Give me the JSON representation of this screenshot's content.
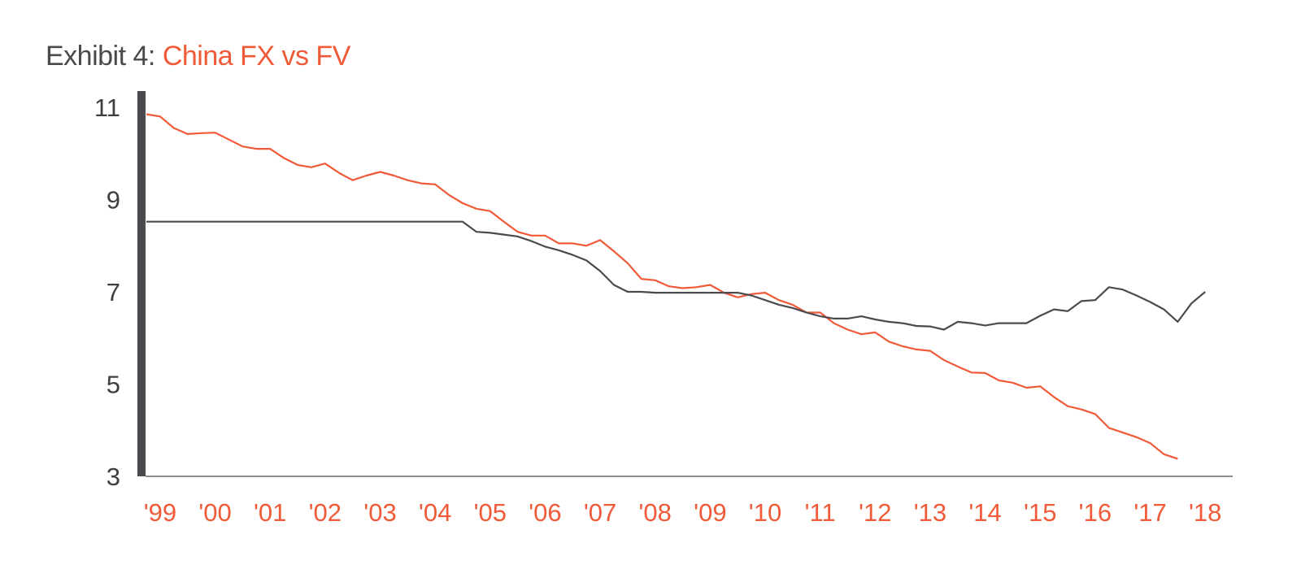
{
  "title": {
    "prefix": "Exhibit 4: ",
    "main": "China FX vs FV"
  },
  "colors": {
    "fv": "#f05a38",
    "fx": "#4a4a4f",
    "axis": "#4a4a4f",
    "title_prefix": "#4a4a4a",
    "accent": "#f05a38"
  },
  "chart_data": {
    "type": "line",
    "title": "China FX vs FV",
    "xlabel": "",
    "ylabel": "",
    "ylim": [
      3,
      11
    ],
    "xlim": [
      1999.0,
      2018.75
    ],
    "yticks": [
      11,
      9,
      7,
      5,
      3
    ],
    "xticks": [
      {
        "value": 1999.25,
        "label": "'99"
      },
      {
        "value": 2000.25,
        "label": "'00"
      },
      {
        "value": 2001.25,
        "label": "'01"
      },
      {
        "value": 2002.25,
        "label": "'02"
      },
      {
        "value": 2003.25,
        "label": "'03"
      },
      {
        "value": 2004.25,
        "label": "'04"
      },
      {
        "value": 2005.25,
        "label": "'05"
      },
      {
        "value": 2006.25,
        "label": "'06"
      },
      {
        "value": 2007.25,
        "label": "'07"
      },
      {
        "value": 2008.25,
        "label": "'08"
      },
      {
        "value": 2009.25,
        "label": "'09"
      },
      {
        "value": 2010.25,
        "label": "'10"
      },
      {
        "value": 2011.25,
        "label": "'11"
      },
      {
        "value": 2012.25,
        "label": "'12"
      },
      {
        "value": 2013.25,
        "label": "'13"
      },
      {
        "value": 2014.25,
        "label": "'14"
      },
      {
        "value": 2015.25,
        "label": "'15"
      },
      {
        "value": 2016.25,
        "label": "'16"
      },
      {
        "value": 2017.25,
        "label": "'17"
      },
      {
        "value": 2018.25,
        "label": "'18"
      }
    ],
    "grid": false,
    "series": [
      {
        "color": "#f05a38",
        "points": [
          [
            1999.0,
            10.85
          ],
          [
            1999.25,
            10.8
          ],
          [
            1999.5,
            10.55
          ],
          [
            1999.75,
            10.42
          ],
          [
            2000.0,
            10.44
          ],
          [
            2000.25,
            10.45
          ],
          [
            2000.5,
            10.3
          ],
          [
            2000.75,
            10.15
          ],
          [
            2001.0,
            10.1
          ],
          [
            2001.25,
            10.1
          ],
          [
            2001.5,
            9.9
          ],
          [
            2001.75,
            9.75
          ],
          [
            2002.0,
            9.7
          ],
          [
            2002.25,
            9.78
          ],
          [
            2002.5,
            9.58
          ],
          [
            2002.75,
            9.42
          ],
          [
            2003.0,
            9.52
          ],
          [
            2003.25,
            9.6
          ],
          [
            2003.5,
            9.52
          ],
          [
            2003.75,
            9.42
          ],
          [
            2004.0,
            9.35
          ],
          [
            2004.25,
            9.33
          ],
          [
            2004.5,
            9.1
          ],
          [
            2004.75,
            8.92
          ],
          [
            2005.0,
            8.8
          ],
          [
            2005.25,
            8.75
          ],
          [
            2005.5,
            8.52
          ],
          [
            2005.75,
            8.3
          ],
          [
            2006.0,
            8.22
          ],
          [
            2006.25,
            8.22
          ],
          [
            2006.5,
            8.05
          ],
          [
            2006.75,
            8.05
          ],
          [
            2007.0,
            8.0
          ],
          [
            2007.25,
            8.12
          ],
          [
            2007.5,
            7.88
          ],
          [
            2007.75,
            7.62
          ],
          [
            2008.0,
            7.28
          ],
          [
            2008.25,
            7.25
          ],
          [
            2008.5,
            7.12
          ],
          [
            2008.75,
            7.08
          ],
          [
            2009.0,
            7.1
          ],
          [
            2009.25,
            7.15
          ],
          [
            2009.5,
            6.98
          ],
          [
            2009.75,
            6.88
          ],
          [
            2010.0,
            6.95
          ],
          [
            2010.25,
            6.98
          ],
          [
            2010.5,
            6.82
          ],
          [
            2010.75,
            6.72
          ],
          [
            2011.0,
            6.55
          ],
          [
            2011.25,
            6.55
          ],
          [
            2011.5,
            6.32
          ],
          [
            2011.75,
            6.18
          ],
          [
            2012.0,
            6.08
          ],
          [
            2012.25,
            6.12
          ],
          [
            2012.5,
            5.92
          ],
          [
            2012.75,
            5.82
          ],
          [
            2013.0,
            5.75
          ],
          [
            2013.25,
            5.72
          ],
          [
            2013.5,
            5.52
          ],
          [
            2013.75,
            5.38
          ],
          [
            2014.0,
            5.25
          ],
          [
            2014.25,
            5.24
          ],
          [
            2014.5,
            5.08
          ],
          [
            2014.75,
            5.03
          ],
          [
            2015.0,
            4.92
          ],
          [
            2015.25,
            4.95
          ],
          [
            2015.5,
            4.72
          ],
          [
            2015.75,
            4.52
          ],
          [
            2016.0,
            4.45
          ],
          [
            2016.25,
            4.35
          ],
          [
            2016.5,
            4.05
          ],
          [
            2016.75,
            3.95
          ],
          [
            2017.0,
            3.85
          ],
          [
            2017.25,
            3.72
          ],
          [
            2017.5,
            3.48
          ],
          [
            2017.75,
            3.38
          ]
        ]
      },
      {
        "color": "#4a4a4f",
        "points": [
          [
            1999.0,
            8.52
          ],
          [
            2004.75,
            8.52
          ],
          [
            2005.0,
            8.3
          ],
          [
            2005.25,
            8.28
          ],
          [
            2005.5,
            8.24
          ],
          [
            2005.75,
            8.2
          ],
          [
            2006.0,
            8.1
          ],
          [
            2006.25,
            7.98
          ],
          [
            2006.5,
            7.9
          ],
          [
            2006.75,
            7.8
          ],
          [
            2007.0,
            7.68
          ],
          [
            2007.25,
            7.45
          ],
          [
            2007.5,
            7.15
          ],
          [
            2007.75,
            7.0
          ],
          [
            2008.0,
            7.0
          ],
          [
            2008.25,
            6.98
          ],
          [
            2009.75,
            6.98
          ],
          [
            2010.0,
            6.92
          ],
          [
            2010.25,
            6.82
          ],
          [
            2010.5,
            6.72
          ],
          [
            2010.75,
            6.65
          ],
          [
            2011.0,
            6.55
          ],
          [
            2011.25,
            6.47
          ],
          [
            2011.5,
            6.42
          ],
          [
            2011.75,
            6.42
          ],
          [
            2012.0,
            6.47
          ],
          [
            2012.25,
            6.4
          ],
          [
            2012.5,
            6.35
          ],
          [
            2012.75,
            6.32
          ],
          [
            2013.0,
            6.26
          ],
          [
            2013.25,
            6.25
          ],
          [
            2013.5,
            6.18
          ],
          [
            2013.75,
            6.35
          ],
          [
            2014.0,
            6.32
          ],
          [
            2014.25,
            6.27
          ],
          [
            2014.5,
            6.32
          ],
          [
            2014.75,
            6.32
          ],
          [
            2015.0,
            6.32
          ],
          [
            2015.25,
            6.48
          ],
          [
            2015.5,
            6.62
          ],
          [
            2015.75,
            6.58
          ],
          [
            2016.0,
            6.8
          ],
          [
            2016.25,
            6.82
          ],
          [
            2016.5,
            7.1
          ],
          [
            2016.75,
            7.05
          ],
          [
            2017.0,
            6.92
          ],
          [
            2017.25,
            6.78
          ],
          [
            2017.5,
            6.62
          ],
          [
            2017.75,
            6.35
          ],
          [
            2018.0,
            6.75
          ],
          [
            2018.25,
            7.0
          ]
        ]
      }
    ]
  }
}
